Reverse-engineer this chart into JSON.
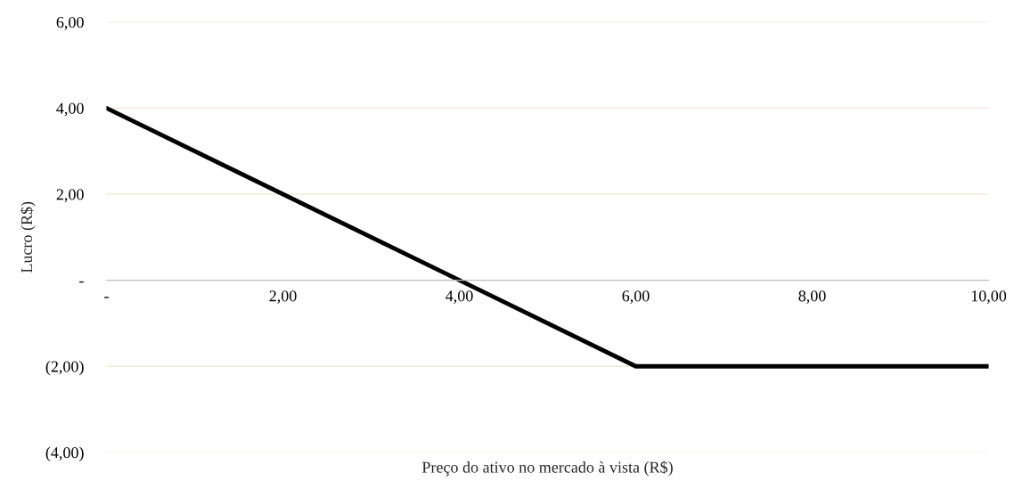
{
  "chart_data": {
    "type": "line",
    "xlabel": "Preço do ativo no mercado à vista (R$)",
    "ylabel": "Lucro (R$)",
    "series": [
      {
        "x": [
          0,
          6,
          10
        ],
        "values": [
          4,
          -2,
          -2
        ],
        "color": "#000000"
      }
    ],
    "xlim": [
      0,
      10
    ],
    "xticks": [
      {
        "value": 0,
        "label": "-"
      },
      {
        "value": 2,
        "label": "2,00"
      },
      {
        "value": 4,
        "label": "4,00"
      },
      {
        "value": 6,
        "label": "6,00"
      },
      {
        "value": 8,
        "label": "8,00"
      },
      {
        "value": 10,
        "label": "10,00"
      }
    ],
    "ylim": [
      -4,
      6
    ],
    "yticks": [
      {
        "value": -4,
        "label": "(4,00)"
      },
      {
        "value": -2,
        "label": "(2,00)"
      },
      {
        "value": 0,
        "label": "-"
      },
      {
        "value": 2,
        "label": "2,00"
      },
      {
        "value": 4,
        "label": "4,00"
      },
      {
        "value": 6,
        "label": "6,00"
      }
    ],
    "grid": "y",
    "legend": false,
    "marker": "none",
    "line_style": "solid"
  }
}
